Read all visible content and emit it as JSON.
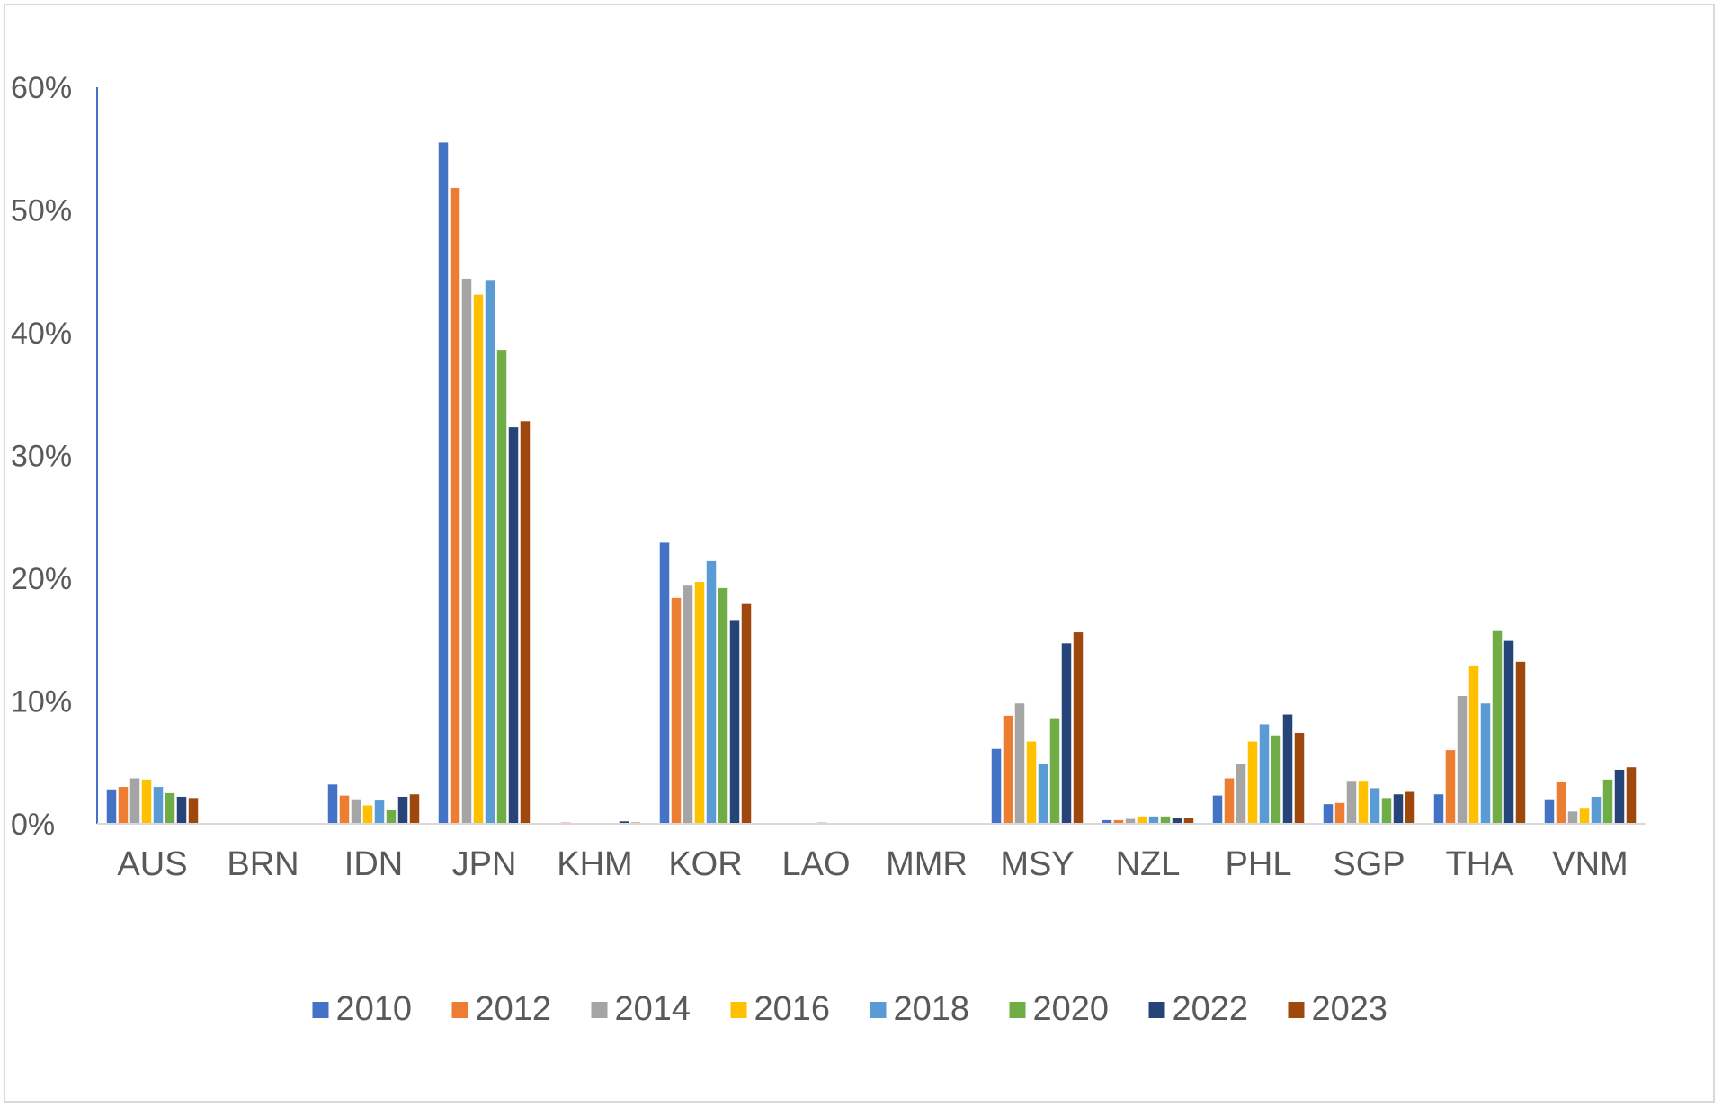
{
  "chart_data": {
    "type": "bar",
    "title": "",
    "xlabel": "",
    "ylabel": "",
    "ylim": [
      0,
      60
    ],
    "yticks": [
      "0%",
      "10%",
      "20%",
      "30%",
      "40%",
      "50%",
      "60%"
    ],
    "grid": false,
    "legend_position": "bottom",
    "categories": [
      "AUS",
      "BRN",
      "IDN",
      "JPN",
      "KHM",
      "KOR",
      "LAO",
      "MMR",
      "MSY",
      "NZL",
      "PHL",
      "SGP",
      "THA",
      "VNM"
    ],
    "series": [
      {
        "name": "2010",
        "color": "#4472C4",
        "values": [
          2.8,
          0,
          3.2,
          55.5,
          0,
          22.9,
          0,
          0,
          6.1,
          0.3,
          2.3,
          1.6,
          2.4,
          2.0
        ]
      },
      {
        "name": "2012",
        "color": "#ED7D31",
        "values": [
          3.0,
          0,
          2.3,
          51.8,
          0.1,
          18.4,
          0,
          0,
          8.8,
          0.3,
          3.7,
          1.7,
          6.0,
          3.4
        ]
      },
      {
        "name": "2014",
        "color": "#A5A5A5",
        "values": [
          3.7,
          0,
          2.0,
          44.4,
          0,
          19.4,
          0,
          0,
          9.8,
          0.4,
          4.9,
          3.5,
          10.4,
          1.0
        ]
      },
      {
        "name": "2016",
        "color": "#FFC000",
        "values": [
          3.6,
          0,
          1.5,
          43.1,
          0,
          19.7,
          0,
          0,
          6.7,
          0.6,
          6.7,
          3.5,
          12.9,
          1.3
        ]
      },
      {
        "name": "2018",
        "color": "#5B9BD5",
        "values": [
          3.0,
          0,
          1.9,
          44.3,
          0,
          21.4,
          0.1,
          0,
          4.9,
          0.6,
          8.1,
          2.9,
          9.8,
          2.2
        ]
      },
      {
        "name": "2020",
        "color": "#70AD47",
        "values": [
          2.5,
          0,
          1.1,
          38.6,
          0,
          19.2,
          0,
          0,
          8.6,
          0.6,
          7.2,
          2.1,
          15.7,
          3.6
        ]
      },
      {
        "name": "2022",
        "color": "#264478",
        "values": [
          2.2,
          0,
          2.2,
          32.3,
          0.2,
          16.6,
          0,
          0,
          14.7,
          0.5,
          8.9,
          2.4,
          14.9,
          4.4
        ]
      },
      {
        "name": "2023",
        "color": "#9E480E",
        "values": [
          2.1,
          0,
          2.4,
          32.8,
          0.1,
          17.9,
          0,
          0,
          15.6,
          0.5,
          7.4,
          2.6,
          13.2,
          4.6
        ]
      }
    ]
  }
}
